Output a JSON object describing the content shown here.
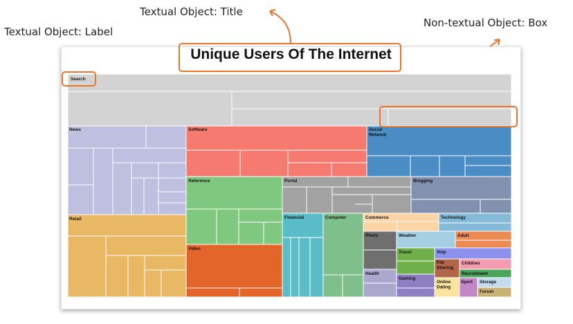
{
  "annotations": {
    "title_label": "Textual Object: Title",
    "label_label": "Textual Object: Label",
    "box_label": "Non-textual Object: Box"
  },
  "chart": {
    "title": "Unique Users Of The Internet",
    "categories": [
      {
        "name": "Search",
        "color": "#d3d3d3"
      },
      {
        "name": "News",
        "color": "#bfc0df"
      },
      {
        "name": "Software",
        "color": "#f67a6f"
      },
      {
        "name": "Social Network",
        "color": "#4a8dc4"
      },
      {
        "name": "Reference",
        "color": "#80c87f"
      },
      {
        "name": "Portal",
        "color": "#a2a2a2"
      },
      {
        "name": "Blogging",
        "color": "#8391b0"
      },
      {
        "name": "Retail",
        "color": "#e8b865"
      },
      {
        "name": "Video",
        "color": "#e4652a"
      },
      {
        "name": "Financial",
        "color": "#59bcc6"
      },
      {
        "name": "Computer",
        "color": "#7fbf8b"
      },
      {
        "name": "Commerce",
        "color": "#fcd4a6"
      },
      {
        "name": "Technology",
        "color": "#84b9da"
      },
      {
        "name": "Photo",
        "color": "#6f6f6f"
      },
      {
        "name": "Weather",
        "color": "#a5d0e4"
      },
      {
        "name": "Adult",
        "color": "#ec8a52"
      },
      {
        "name": "Travel",
        "color": "#6fb04a"
      },
      {
        "name": "Voip",
        "color": "#8c91ee"
      },
      {
        "name": "Health",
        "color": "#aba8d0"
      },
      {
        "name": "File Sharing",
        "color": "#b4664b"
      },
      {
        "name": "Children",
        "color": "#f59bb0"
      },
      {
        "name": "Recruitment",
        "color": "#4aa45a"
      },
      {
        "name": "Gaming",
        "color": "#8e7fc3"
      },
      {
        "name": "Online Dating",
        "color": "#fce39e"
      },
      {
        "name": "Sport",
        "color": "#c286c9"
      },
      {
        "name": "Storage",
        "color": "#c2dcef"
      },
      {
        "name": "Forum",
        "color": "#c9b173"
      }
    ]
  }
}
